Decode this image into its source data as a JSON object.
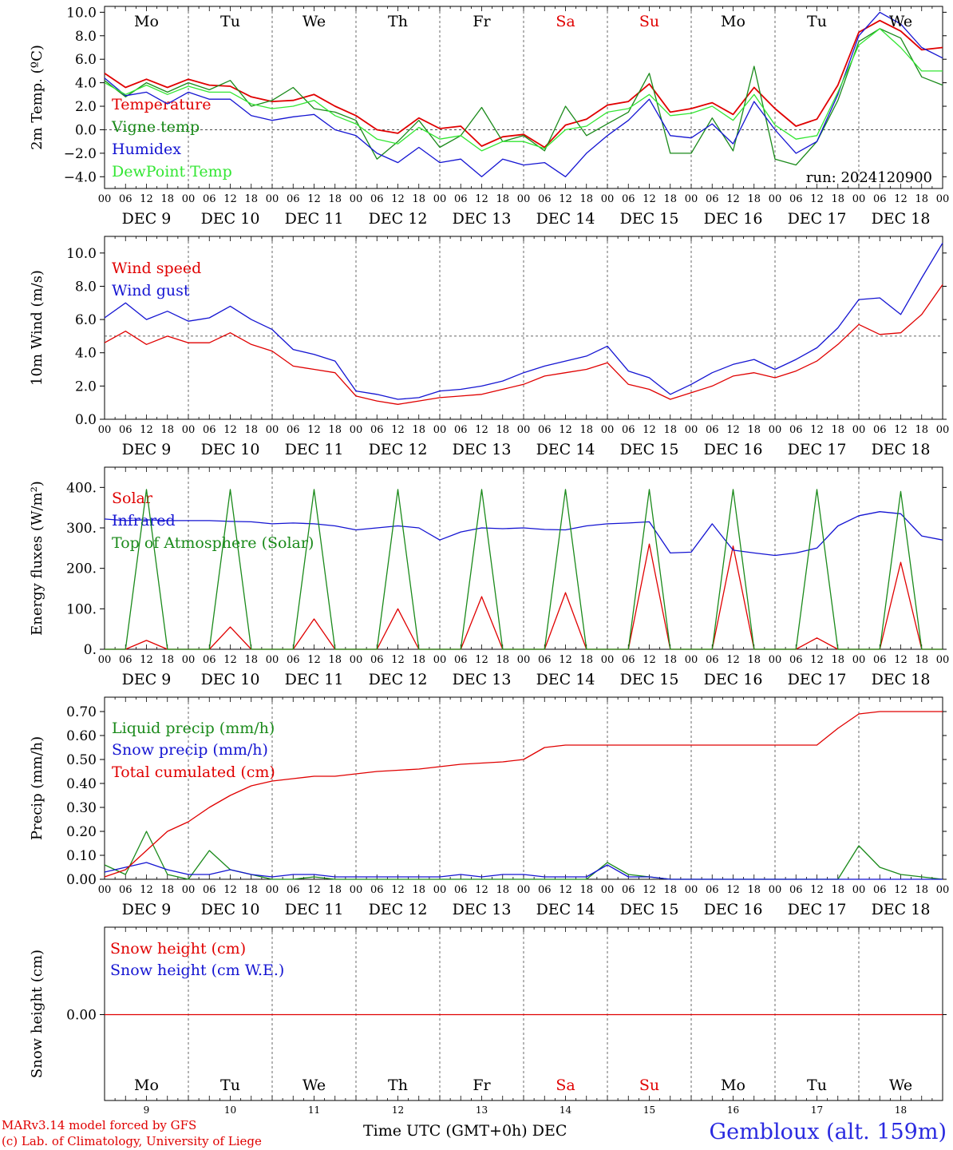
{
  "colors": {
    "red": "#e00000",
    "green": "#1a8a1a",
    "blue": "#1414d2",
    "lightgreen": "#33e633",
    "axis": "#000000",
    "day_sa_su": "#e00000"
  },
  "days": [
    "Mo",
    "Tu",
    "We",
    "Th",
    "Fr",
    "Sa",
    "Su",
    "Mo",
    "Tu",
    "We"
  ],
  "dates": [
    "DEC  9",
    "DEC 10",
    "DEC 11",
    "DEC 12",
    "DEC 13",
    "DEC 14",
    "DEC 15",
    "DEC 16",
    "DEC 17",
    "DEC 18"
  ],
  "day_numbers": [
    "9",
    "10",
    "11",
    "12",
    "13",
    "14",
    "15",
    "16",
    "17",
    "18"
  ],
  "hour_ticks": [
    "00",
    "06",
    "12",
    "18"
  ],
  "run_label": "run: 2024120900",
  "credit_line1": "MARv3.14 model forced by GFS",
  "credit_line2": "(c) Lab. of Climatology, University of Liege",
  "xaxis_title": "Time UTC (GMT+0h) DEC",
  "station": "Gembloux (alt. 159m)",
  "chart_data": [
    {
      "type": "line",
      "ylabel": "2m Temp. (ºC)",
      "ylim": [
        -5,
        10
      ],
      "yticks": [
        "10.0",
        "8.0",
        "6.0",
        "4.0",
        "2.0",
        "0.0",
        "−2.0",
        "−4.0"
      ],
      "ytick_values": [
        10,
        8,
        6,
        4,
        2,
        0,
        -2,
        -4
      ],
      "reference_line": 0,
      "x_hours": [
        0,
        6,
        12,
        18,
        24,
        30,
        36,
        42,
        48,
        54,
        60,
        66,
        72,
        78,
        84,
        90,
        96,
        102,
        108,
        114,
        120,
        126,
        132,
        138,
        144,
        150,
        156,
        162,
        168,
        174,
        180,
        186,
        192,
        198,
        204,
        210,
        216,
        222,
        228,
        234,
        240
      ],
      "series": [
        {
          "name": "Temperature",
          "color": "#e00000",
          "values": [
            4.8,
            3.6,
            4.3,
            3.6,
            4.3,
            3.8,
            3.7,
            2.8,
            2.4,
            2.5,
            3.0,
            2.0,
            1.2,
            0.0,
            -0.3,
            1.0,
            0.1,
            0.3,
            -1.4,
            -0.6,
            -0.4,
            -1.5,
            0.4,
            0.9,
            2.1,
            2.4,
            3.9,
            1.5,
            1.8,
            2.3,
            1.3,
            3.6,
            1.8,
            0.3,
            0.9,
            3.8,
            8.3,
            9.3,
            8.4,
            6.8,
            7.0
          ]
        },
        {
          "name": "Vigne temp",
          "color": "#1a8a1a",
          "values": [
            4.2,
            2.8,
            4.0,
            3.2,
            4.0,
            3.4,
            4.2,
            2.0,
            2.5,
            3.6,
            1.8,
            1.5,
            0.8,
            -2.5,
            -1.0,
            0.8,
            -1.5,
            -0.5,
            1.9,
            -1.0,
            -0.5,
            -1.8,
            2.0,
            -0.5,
            0.5,
            1.5,
            4.8,
            -2.0,
            -2.0,
            1.0,
            -1.8,
            5.4,
            -2.5,
            -3.0,
            -1.0,
            2.5,
            7.5,
            8.6,
            7.8,
            4.5,
            3.8
          ]
        },
        {
          "name": "Humidex",
          "color": "#1414d2",
          "values": [
            4.4,
            2.9,
            3.2,
            2.2,
            3.2,
            2.6,
            2.6,
            1.2,
            0.8,
            1.1,
            1.3,
            0.0,
            -0.5,
            -2.0,
            -2.8,
            -1.5,
            -2.8,
            -2.5,
            -4.0,
            -2.5,
            -3.0,
            -2.8,
            -4.0,
            -2.0,
            -0.5,
            0.8,
            2.6,
            -0.5,
            -0.7,
            0.5,
            -1.2,
            2.4,
            0.0,
            -2.0,
            -1.0,
            3.0,
            8.0,
            10.0,
            9.0,
            7.0,
            6.1
          ]
        },
        {
          "name": "DewPoint Temp",
          "color": "#33e633",
          "values": [
            4.0,
            3.0,
            3.8,
            3.0,
            3.7,
            3.2,
            3.2,
            2.2,
            1.8,
            2.0,
            2.5,
            1.2,
            0.5,
            -0.8,
            -1.2,
            0.2,
            -0.8,
            -0.5,
            -1.8,
            -1.0,
            -1.0,
            -1.6,
            0.0,
            0.3,
            1.5,
            1.8,
            3.0,
            1.2,
            1.4,
            2.0,
            0.8,
            3.0,
            0.4,
            -0.8,
            -0.5,
            3.2,
            7.2,
            8.6,
            7.0,
            5.0,
            5.0
          ]
        }
      ]
    },
    {
      "type": "line",
      "ylabel": "10m Wind (m/s)",
      "ylim": [
        0,
        11
      ],
      "yticks": [
        "10.0",
        "8.0",
        "6.0",
        "4.0",
        "2.0",
        "0.0"
      ],
      "ytick_values": [
        10,
        8,
        6,
        4,
        2,
        0
      ],
      "reference_line": 5,
      "x_hours": [
        0,
        6,
        12,
        18,
        24,
        30,
        36,
        42,
        48,
        54,
        60,
        66,
        72,
        78,
        84,
        90,
        96,
        102,
        108,
        114,
        120,
        126,
        132,
        138,
        144,
        150,
        156,
        162,
        168,
        174,
        180,
        186,
        192,
        198,
        204,
        210,
        216,
        222,
        228,
        234,
        240
      ],
      "series": [
        {
          "name": "Wind speed",
          "color": "#e00000",
          "values": [
            4.6,
            5.3,
            4.5,
            5.0,
            4.6,
            4.6,
            5.2,
            4.5,
            4.1,
            3.2,
            3.0,
            2.8,
            1.4,
            1.1,
            0.9,
            1.1,
            1.3,
            1.4,
            1.5,
            1.8,
            2.1,
            2.6,
            2.8,
            3.0,
            3.4,
            2.1,
            1.8,
            1.2,
            1.6,
            2.0,
            2.6,
            2.8,
            2.5,
            2.9,
            3.5,
            4.5,
            5.7,
            5.1,
            5.2,
            6.3,
            8.1
          ]
        },
        {
          "name": "Wind gust",
          "color": "#1414d2",
          "values": [
            6.1,
            7.0,
            6.0,
            6.5,
            5.9,
            6.1,
            6.8,
            6.0,
            5.4,
            4.2,
            3.9,
            3.5,
            1.7,
            1.5,
            1.2,
            1.3,
            1.7,
            1.8,
            2.0,
            2.3,
            2.8,
            3.2,
            3.5,
            3.8,
            4.4,
            2.9,
            2.5,
            1.5,
            2.1,
            2.8,
            3.3,
            3.6,
            3.0,
            3.6,
            4.3,
            5.5,
            7.2,
            7.3,
            6.3,
            8.5,
            10.6
          ]
        }
      ]
    },
    {
      "type": "line",
      "ylabel": "Energy fluxes (W/m²)",
      "ylim": [
        0,
        450
      ],
      "yticks": [
        "400.",
        "300.",
        "200.",
        "100.",
        "0."
      ],
      "ytick_values": [
        400,
        300,
        200,
        100,
        0
      ],
      "x_hours": [
        0,
        6,
        12,
        18,
        24,
        30,
        36,
        42,
        48,
        54,
        60,
        66,
        72,
        78,
        84,
        90,
        96,
        102,
        108,
        114,
        120,
        126,
        132,
        138,
        144,
        150,
        156,
        162,
        168,
        174,
        180,
        186,
        192,
        198,
        204,
        210,
        216,
        222,
        228,
        234,
        240
      ],
      "series": [
        {
          "name": "Solar",
          "color": "#e00000",
          "values": [
            0,
            0,
            22,
            0,
            0,
            0,
            55,
            0,
            0,
            0,
            75,
            0,
            0,
            0,
            100,
            0,
            0,
            0,
            130,
            0,
            0,
            0,
            140,
            0,
            0,
            0,
            260,
            0,
            0,
            0,
            255,
            0,
            0,
            0,
            28,
            0,
            0,
            0,
            215,
            0,
            0
          ]
        },
        {
          "name": "Infrared",
          "color": "#1414d2",
          "values": [
            322,
            318,
            320,
            318,
            318,
            318,
            316,
            315,
            310,
            312,
            310,
            305,
            295,
            300,
            305,
            300,
            270,
            290,
            300,
            298,
            300,
            296,
            295,
            305,
            310,
            312,
            315,
            238,
            240,
            310,
            245,
            238,
            232,
            238,
            250,
            305,
            330,
            340,
            335,
            280,
            270
          ]
        },
        {
          "name": "Top of Atmosphere (Solar)",
          "color": "#1a8a1a",
          "values": [
            0,
            0,
            395,
            0,
            0,
            0,
            395,
            0,
            0,
            0,
            395,
            0,
            0,
            0,
            395,
            0,
            0,
            0,
            395,
            0,
            0,
            0,
            395,
            0,
            0,
            0,
            395,
            0,
            0,
            0,
            395,
            0,
            0,
            0,
            395,
            0,
            0,
            0,
            390,
            0,
            0
          ]
        }
      ]
    },
    {
      "type": "line",
      "ylabel": "Precip (mm/h)",
      "ylim": [
        0,
        0.75
      ],
      "yticks": [
        "0.70",
        "0.60",
        "0.50",
        "0.40",
        "0.30",
        "0.20",
        "0.10",
        "0.00"
      ],
      "ytick_values": [
        0.7,
        0.6,
        0.5,
        0.4,
        0.3,
        0.2,
        0.1,
        0
      ],
      "x_hours": [
        0,
        6,
        12,
        18,
        24,
        30,
        36,
        42,
        48,
        54,
        60,
        66,
        72,
        78,
        84,
        90,
        96,
        102,
        108,
        114,
        120,
        126,
        132,
        138,
        144,
        150,
        156,
        162,
        168,
        174,
        180,
        186,
        192,
        198,
        204,
        210,
        216,
        222,
        228,
        234,
        240
      ],
      "series": [
        {
          "name": "Liquid precip (mm/h)",
          "color": "#1a8a1a",
          "values": [
            0.06,
            0.02,
            0.2,
            0.02,
            0.0,
            0.12,
            0.04,
            0.02,
            0.0,
            0.0,
            0.01,
            0.0,
            0.0,
            0.0,
            0.0,
            0.0,
            0.0,
            0.0,
            0.0,
            0.0,
            0.0,
            0.0,
            0.0,
            0.0,
            0.07,
            0.02,
            0.01,
            0.0,
            0.0,
            0.0,
            0.0,
            0.0,
            0.0,
            0.0,
            0.0,
            0.0,
            0.14,
            0.05,
            0.02,
            0.01,
            0.0
          ]
        },
        {
          "name": "Snow precip (mm/h)",
          "color": "#1414d2",
          "values": [
            0.03,
            0.05,
            0.07,
            0.04,
            0.02,
            0.02,
            0.04,
            0.02,
            0.01,
            0.02,
            0.02,
            0.01,
            0.01,
            0.01,
            0.01,
            0.01,
            0.01,
            0.02,
            0.01,
            0.02,
            0.02,
            0.01,
            0.01,
            0.01,
            0.06,
            0.01,
            0.01,
            0.0,
            0.0,
            0.0,
            0.0,
            0.0,
            0.0,
            0.0,
            0.0,
            0.0,
            0.0,
            0.0,
            0.0,
            0.0,
            0.0
          ]
        },
        {
          "name": "Total cumulated (cm)",
          "color": "#e00000",
          "values": [
            0.01,
            0.04,
            0.12,
            0.2,
            0.24,
            0.3,
            0.35,
            0.39,
            0.41,
            0.42,
            0.43,
            0.43,
            0.44,
            0.45,
            0.455,
            0.46,
            0.47,
            0.48,
            0.485,
            0.49,
            0.5,
            0.55,
            0.56,
            0.56,
            0.56,
            0.56,
            0.56,
            0.56,
            0.56,
            0.56,
            0.56,
            0.56,
            0.56,
            0.56,
            0.56,
            0.63,
            0.69,
            0.7,
            0.7,
            0.7,
            0.7
          ]
        }
      ]
    },
    {
      "type": "line",
      "ylabel": "Snow height (cm)",
      "yticks": [
        "0.00"
      ],
      "ytick_values": [
        0
      ],
      "series": [
        {
          "name": "Snow height (cm)",
          "color": "#e00000",
          "values": [
            0,
            0
          ]
        },
        {
          "name": "Snow height (cm W.E.)",
          "color": "#1414d2",
          "values": [
            0,
            0
          ]
        }
      ]
    }
  ]
}
